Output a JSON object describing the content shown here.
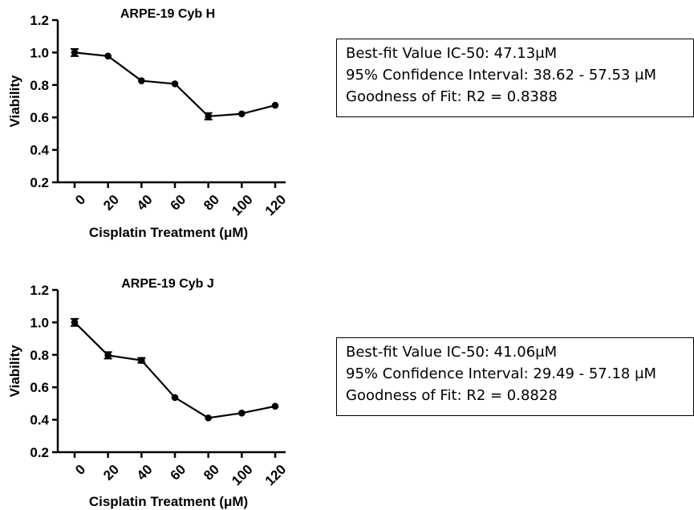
{
  "chart_data": [
    {
      "type": "line",
      "title": "ARPE-19 Cyb H",
      "xlabel": "Cisplatin Treatment (μM)",
      "ylabel": "Viability",
      "categories": [
        "0",
        "20",
        "40",
        "60",
        "80",
        "100",
        "120"
      ],
      "series": [
        {
          "values": [
            1.0,
            0.978,
            0.826,
            0.807,
            0.607,
            0.622,
            0.675
          ],
          "errors": [
            0.022,
            0.006,
            0.006,
            0.006,
            0.02,
            0.006,
            0.006
          ]
        }
      ],
      "ylim": [
        0.2,
        1.2
      ],
      "yticks": [
        "0.2",
        "0.4",
        "0.6",
        "0.8",
        "1.0",
        "1.2"
      ],
      "grid": false,
      "stats": [
        "Best-fit Value IC-50: 47.13μM",
        "95% Confidence Interval: 38.62 - 57.53 μM",
        "Goodness of Fit: R2 = 0.8388"
      ]
    },
    {
      "type": "line",
      "title": "ARPE-19 Cyb J",
      "xlabel": "Cisplatin Treatment (μM)",
      "ylabel": "Viability",
      "categories": [
        "0",
        "20",
        "40",
        "60",
        "80",
        "100",
        "120"
      ],
      "series": [
        {
          "values": [
            1.0,
            0.797,
            0.766,
            0.537,
            0.411,
            0.441,
            0.483
          ],
          "errors": [
            0.022,
            0.02,
            0.015,
            0.006,
            0.006,
            0.006,
            0.006
          ]
        }
      ],
      "ylim": [
        0.2,
        1.2
      ],
      "yticks": [
        "0.2",
        "0.4",
        "0.6",
        "0.8",
        "1.0",
        "1.2"
      ],
      "grid": false,
      "stats": [
        "Best-fit Value IC-50: 41.06μM",
        "95% Confidence Interval: 29.49 - 57.18 μM",
        "Goodness of Fit: R2 = 0.8828"
      ]
    }
  ]
}
